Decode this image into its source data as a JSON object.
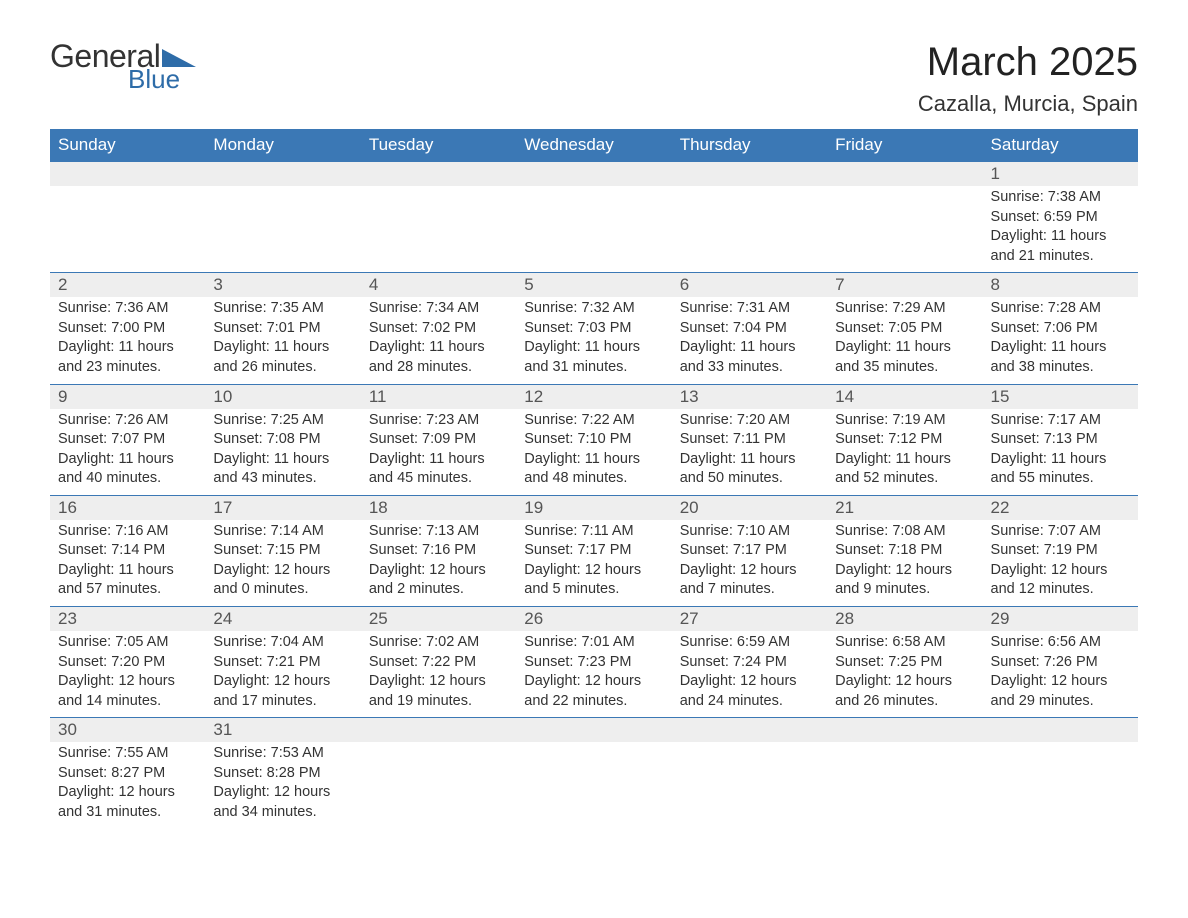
{
  "logo": {
    "word1": "General",
    "word2": "Blue",
    "color_text": "#333333",
    "color_blue": "#2e6ca8"
  },
  "header": {
    "month_title": "March 2025",
    "location": "Cazalla, Murcia, Spain"
  },
  "colors": {
    "header_bg": "#3b78b5",
    "header_text": "#ffffff",
    "row_stripe": "#eeeeee",
    "border": "#3b78b5",
    "body_text": "#333333",
    "daynum_text": "#555555",
    "page_bg": "#ffffff"
  },
  "typography": {
    "title_fontsize": 40,
    "location_fontsize": 22,
    "dayhead_fontsize": 17,
    "daynum_fontsize": 17,
    "cell_fontsize": 14.5,
    "font_family": "Arial"
  },
  "day_labels": [
    "Sunday",
    "Monday",
    "Tuesday",
    "Wednesday",
    "Thursday",
    "Friday",
    "Saturday"
  ],
  "field_labels": {
    "sunrise": "Sunrise:",
    "sunset": "Sunset:",
    "daylight": "Daylight:"
  },
  "weeks": [
    {
      "nums": [
        "",
        "",
        "",
        "",
        "",
        "",
        "1"
      ],
      "sunrise": [
        "",
        "",
        "",
        "",
        "",
        "",
        "7:38 AM"
      ],
      "sunset": [
        "",
        "",
        "",
        "",
        "",
        "",
        "6:59 PM"
      ],
      "day_h": [
        "",
        "",
        "",
        "",
        "",
        "",
        "11"
      ],
      "day_m": [
        "",
        "",
        "",
        "",
        "",
        "",
        "21"
      ]
    },
    {
      "nums": [
        "2",
        "3",
        "4",
        "5",
        "6",
        "7",
        "8"
      ],
      "sunrise": [
        "7:36 AM",
        "7:35 AM",
        "7:34 AM",
        "7:32 AM",
        "7:31 AM",
        "7:29 AM",
        "7:28 AM"
      ],
      "sunset": [
        "7:00 PM",
        "7:01 PM",
        "7:02 PM",
        "7:03 PM",
        "7:04 PM",
        "7:05 PM",
        "7:06 PM"
      ],
      "day_h": [
        "11",
        "11",
        "11",
        "11",
        "11",
        "11",
        "11"
      ],
      "day_m": [
        "23",
        "26",
        "28",
        "31",
        "33",
        "35",
        "38"
      ]
    },
    {
      "nums": [
        "9",
        "10",
        "11",
        "12",
        "13",
        "14",
        "15"
      ],
      "sunrise": [
        "7:26 AM",
        "7:25 AM",
        "7:23 AM",
        "7:22 AM",
        "7:20 AM",
        "7:19 AM",
        "7:17 AM"
      ],
      "sunset": [
        "7:07 PM",
        "7:08 PM",
        "7:09 PM",
        "7:10 PM",
        "7:11 PM",
        "7:12 PM",
        "7:13 PM"
      ],
      "day_h": [
        "11",
        "11",
        "11",
        "11",
        "11",
        "11",
        "11"
      ],
      "day_m": [
        "40",
        "43",
        "45",
        "48",
        "50",
        "52",
        "55"
      ]
    },
    {
      "nums": [
        "16",
        "17",
        "18",
        "19",
        "20",
        "21",
        "22"
      ],
      "sunrise": [
        "7:16 AM",
        "7:14 AM",
        "7:13 AM",
        "7:11 AM",
        "7:10 AM",
        "7:08 AM",
        "7:07 AM"
      ],
      "sunset": [
        "7:14 PM",
        "7:15 PM",
        "7:16 PM",
        "7:17 PM",
        "7:17 PM",
        "7:18 PM",
        "7:19 PM"
      ],
      "day_h": [
        "11",
        "12",
        "12",
        "12",
        "12",
        "12",
        "12"
      ],
      "day_m": [
        "57",
        "0",
        "2",
        "5",
        "7",
        "9",
        "12"
      ]
    },
    {
      "nums": [
        "23",
        "24",
        "25",
        "26",
        "27",
        "28",
        "29"
      ],
      "sunrise": [
        "7:05 AM",
        "7:04 AM",
        "7:02 AM",
        "7:01 AM",
        "6:59 AM",
        "6:58 AM",
        "6:56 AM"
      ],
      "sunset": [
        "7:20 PM",
        "7:21 PM",
        "7:22 PM",
        "7:23 PM",
        "7:24 PM",
        "7:25 PM",
        "7:26 PM"
      ],
      "day_h": [
        "12",
        "12",
        "12",
        "12",
        "12",
        "12",
        "12"
      ],
      "day_m": [
        "14",
        "17",
        "19",
        "22",
        "24",
        "26",
        "29"
      ]
    },
    {
      "nums": [
        "30",
        "31",
        "",
        "",
        "",
        "",
        ""
      ],
      "sunrise": [
        "7:55 AM",
        "7:53 AM",
        "",
        "",
        "",
        "",
        ""
      ],
      "sunset": [
        "8:27 PM",
        "8:28 PM",
        "",
        "",
        "",
        "",
        ""
      ],
      "day_h": [
        "12",
        "12",
        "",
        "",
        "",
        "",
        ""
      ],
      "day_m": [
        "31",
        "34",
        "",
        "",
        "",
        "",
        ""
      ]
    }
  ]
}
